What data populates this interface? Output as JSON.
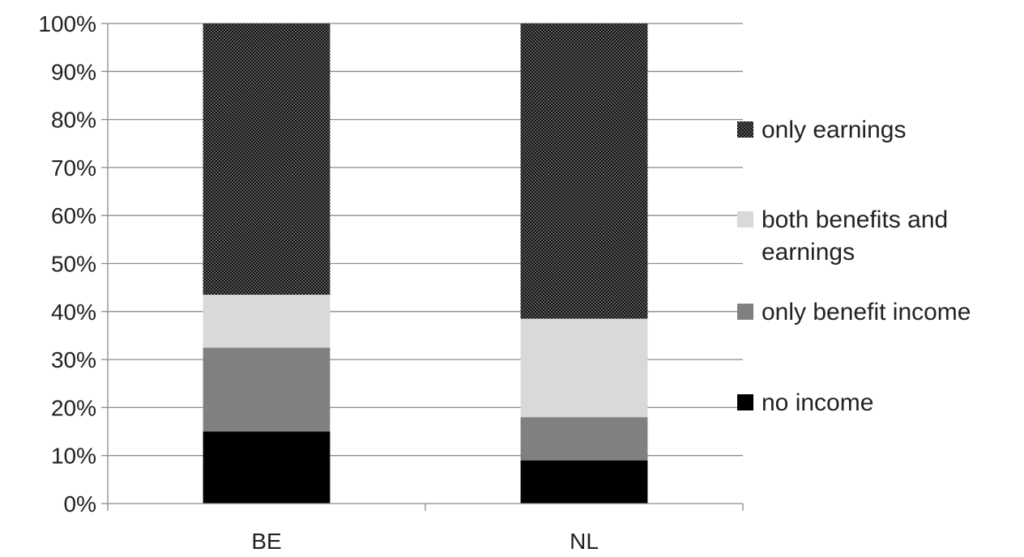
{
  "chart_data": {
    "type": "bar",
    "stacked": true,
    "categories": [
      "BE",
      "NL"
    ],
    "series": [
      {
        "name": "no income",
        "values": [
          15,
          9
        ],
        "color": "#000000",
        "pattern": "solid"
      },
      {
        "name": "only benefit income",
        "values": [
          17.5,
          9
        ],
        "color": "#808080",
        "pattern": "solid"
      },
      {
        "name": "both benefits and earnings",
        "values": [
          11,
          20.5
        ],
        "color": "#d9d9d9",
        "pattern": "solid"
      },
      {
        "name": "only earnings",
        "values": [
          56.5,
          61.5
        ],
        "color": "#333333",
        "pattern": "dotted"
      }
    ],
    "ylim": [
      0,
      100
    ],
    "y_ticks": [
      0,
      10,
      20,
      30,
      40,
      50,
      60,
      70,
      80,
      90,
      100
    ],
    "y_tick_labels": [
      "0%",
      "10%",
      "20%",
      "30%",
      "40%",
      "50%",
      "60%",
      "70%",
      "80%",
      "90%",
      "100%"
    ],
    "grid": true,
    "legend_position": "right",
    "legend_order": [
      "only earnings",
      "both benefits and earnings",
      "only benefit income",
      "no income"
    ]
  }
}
